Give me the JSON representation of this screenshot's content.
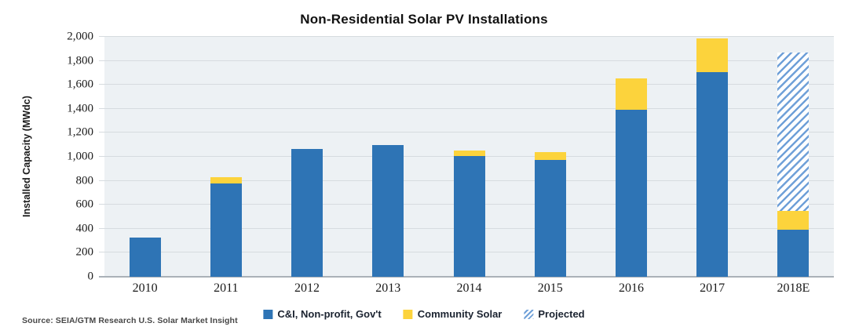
{
  "chart": {
    "title": "Non-Residential Solar PV Installations",
    "ylabel": "Installed Capacity (MWdc)",
    "source": "Source: SEIA/GTM Research U.S. Solar Market Insight"
  },
  "legend": {
    "items": [
      {
        "label": "C&I, Non-profit, Gov't",
        "swatch": "solid-blue"
      },
      {
        "label": "Community Solar",
        "swatch": "solid-yellow"
      },
      {
        "label": "Projected",
        "swatch": "hatch"
      }
    ]
  },
  "colors": {
    "bar_blue": "#2E74B5",
    "bar_yellow": "#FCD33C",
    "hatch_stripe": "#6FA0D8",
    "plot_bg": "#EDF1F4"
  },
  "chart_data": {
    "type": "bar",
    "stacked": true,
    "title": "Non-Residential Solar PV Installations",
    "xlabel": "",
    "ylabel": "Installed Capacity (MWdc)",
    "categories": [
      "2010",
      "2011",
      "2012",
      "2013",
      "2014",
      "2015",
      "2016",
      "2017",
      "2018E"
    ],
    "series": [
      {
        "name": "C&I, Non-profit, Gov't",
        "key": "ci",
        "values": [
          330,
          775,
          1065,
          1100,
          1005,
          975,
          1395,
          1705,
          390
        ]
      },
      {
        "name": "Community Solar",
        "key": "community",
        "values": [
          0,
          55,
          0,
          0,
          45,
          65,
          260,
          280,
          160
        ]
      },
      {
        "name": "Projected",
        "key": "projected",
        "values": [
          0,
          0,
          0,
          0,
          0,
          0,
          0,
          0,
          1320
        ]
      }
    ],
    "totals": [
      330,
      830,
      1065,
      1100,
      1050,
      1040,
      1655,
      1985,
      1870
    ],
    "ylim": [
      0,
      2000
    ],
    "y_tick_step": 200,
    "y_ticks": [
      "2,000",
      "1,800",
      "1,600",
      "1,400",
      "1,200",
      "1,000",
      "800",
      "600",
      "400",
      "200",
      "0"
    ],
    "grid": "horizontal",
    "legend_position": "bottom"
  }
}
